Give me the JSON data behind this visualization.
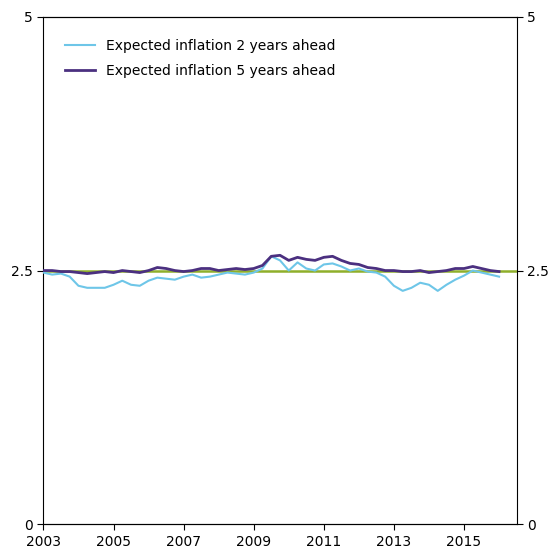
{
  "ylim": [
    0,
    5
  ],
  "xlim_start": 2003.0,
  "xlim_end": 2016.5,
  "reference_line": 2.5,
  "line2_color": "#6ec6e8",
  "line5_color": "#4b3080",
  "ref_color": "#8faf2a",
  "legend_labels": [
    "Expected inflation 2 years ahead",
    "Expected inflation 5 years ahead"
  ],
  "xtick_years": [
    2003,
    2005,
    2007,
    2009,
    2011,
    2013,
    2015
  ],
  "yticks_left": [
    0,
    2.5,
    5
  ],
  "yticks_right": [
    0,
    2.5,
    5
  ],
  "line2_lw": 1.5,
  "line5_lw": 2.0,
  "ref_lw": 1.8,
  "legend_fontsize": 10,
  "tick_fontsize": 10,
  "quarters_2yr": [
    2.48,
    2.46,
    2.47,
    2.44,
    2.35,
    2.33,
    2.33,
    2.33,
    2.36,
    2.4,
    2.36,
    2.35,
    2.4,
    2.43,
    2.42,
    2.41,
    2.44,
    2.46,
    2.43,
    2.44,
    2.46,
    2.48,
    2.47,
    2.46,
    2.48,
    2.52,
    2.64,
    2.6,
    2.5,
    2.58,
    2.52,
    2.5,
    2.56,
    2.57,
    2.54,
    2.5,
    2.52,
    2.49,
    2.48,
    2.44,
    2.35,
    2.3,
    2.33,
    2.38,
    2.36,
    2.3,
    2.36,
    2.41,
    2.45,
    2.5,
    2.48,
    2.46,
    2.44
  ],
  "quarters_5yr": [
    2.5,
    2.5,
    2.49,
    2.49,
    2.48,
    2.47,
    2.48,
    2.49,
    2.48,
    2.5,
    2.49,
    2.48,
    2.5,
    2.53,
    2.52,
    2.5,
    2.49,
    2.5,
    2.52,
    2.52,
    2.5,
    2.51,
    2.52,
    2.51,
    2.52,
    2.55,
    2.64,
    2.65,
    2.6,
    2.63,
    2.61,
    2.6,
    2.63,
    2.64,
    2.6,
    2.57,
    2.56,
    2.53,
    2.52,
    2.5,
    2.5,
    2.49,
    2.49,
    2.5,
    2.48,
    2.49,
    2.5,
    2.52,
    2.52,
    2.54,
    2.52,
    2.5,
    2.49
  ]
}
